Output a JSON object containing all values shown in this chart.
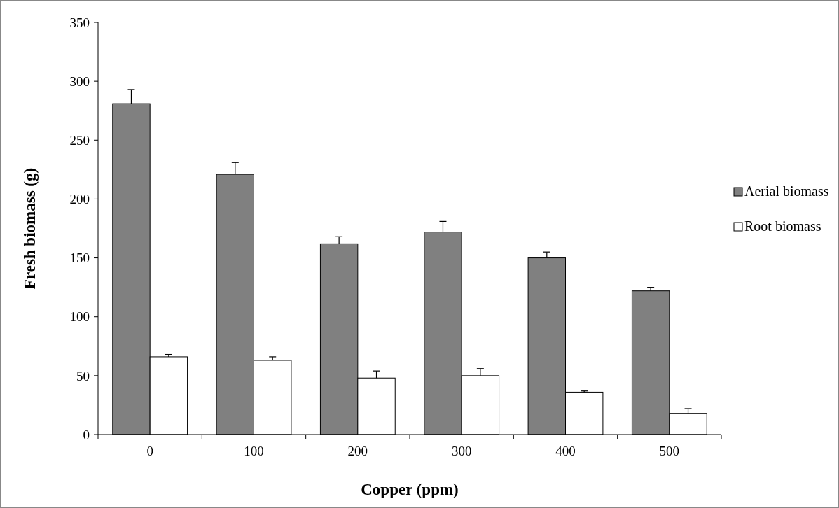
{
  "chart_data": {
    "type": "bar",
    "xlabel": "Copper (ppm)",
    "ylabel": "Fresh biomass (g)",
    "categories": [
      "0",
      "100",
      "200",
      "300",
      "400",
      "500"
    ],
    "series": [
      {
        "name": "Aerial biomass",
        "color": "#808080",
        "values": [
          281,
          221,
          162,
          172,
          150,
          122
        ],
        "errors": [
          [
            281,
            293
          ],
          [
            221,
            231
          ],
          [
            162,
            168
          ],
          [
            172,
            181
          ],
          [
            150,
            155
          ],
          [
            122,
            125
          ]
        ]
      },
      {
        "name": "Root biomass",
        "color": "#ffffff",
        "values": [
          66,
          63,
          48,
          50,
          36,
          18
        ],
        "errors": [
          [
            66,
            68
          ],
          [
            63,
            66
          ],
          [
            48,
            54
          ],
          [
            50,
            56
          ],
          [
            36,
            37
          ],
          [
            18,
            22
          ]
        ]
      }
    ],
    "ylim": [
      0,
      350
    ],
    "yticks": [
      0,
      50,
      100,
      150,
      200,
      250,
      300,
      350
    ],
    "grid": false,
    "legend": "right"
  }
}
